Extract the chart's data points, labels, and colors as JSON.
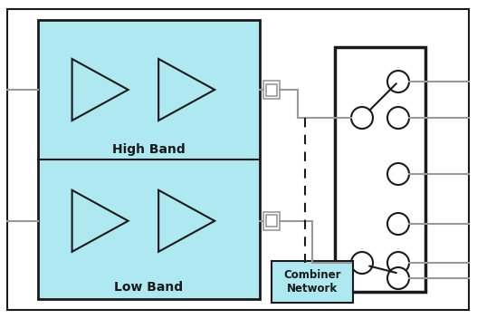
{
  "bg_color": "#ffffff",
  "fig_w": 5.27,
  "fig_h": 3.52,
  "amp_fill": "#aee8f0",
  "dark_line": "#1a1a1a",
  "line_color": "#999999",
  "tri_fill": "#aee8f0",
  "tri_edge": "#1a1a1a",
  "high_band_label": "High Band",
  "low_band_label": "Low Band",
  "combiner_label": "Combiner\nNetwork",
  "label_fontsize": 10,
  "combiner_fontsize": 8.5
}
